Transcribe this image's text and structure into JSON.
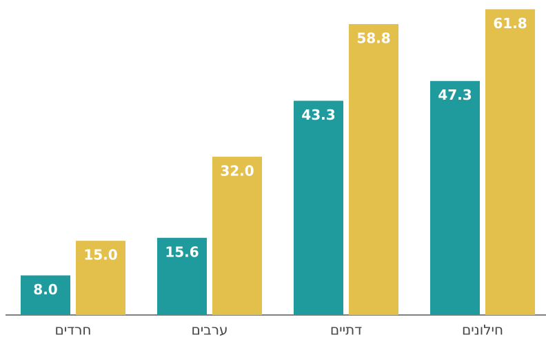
{
  "chart_data": {
    "type": "bar",
    "categories": [
      "חרדים",
      "ערבים",
      "דתיים",
      "חילונים"
    ],
    "series": [
      {
        "color": "#1f9a9d",
        "values": [
          8.0,
          15.6,
          43.3,
          47.3
        ],
        "value_labels": [
          "8.0",
          "15.6",
          "43.3",
          "47.3"
        ]
      },
      {
        "color": "#e3bf4b",
        "values": [
          15.0,
          32.0,
          58.8,
          61.8
        ],
        "value_labels": [
          "15.0",
          "32.0",
          "58.8",
          "61.8"
        ]
      }
    ],
    "ylim": [
      0,
      62
    ]
  }
}
